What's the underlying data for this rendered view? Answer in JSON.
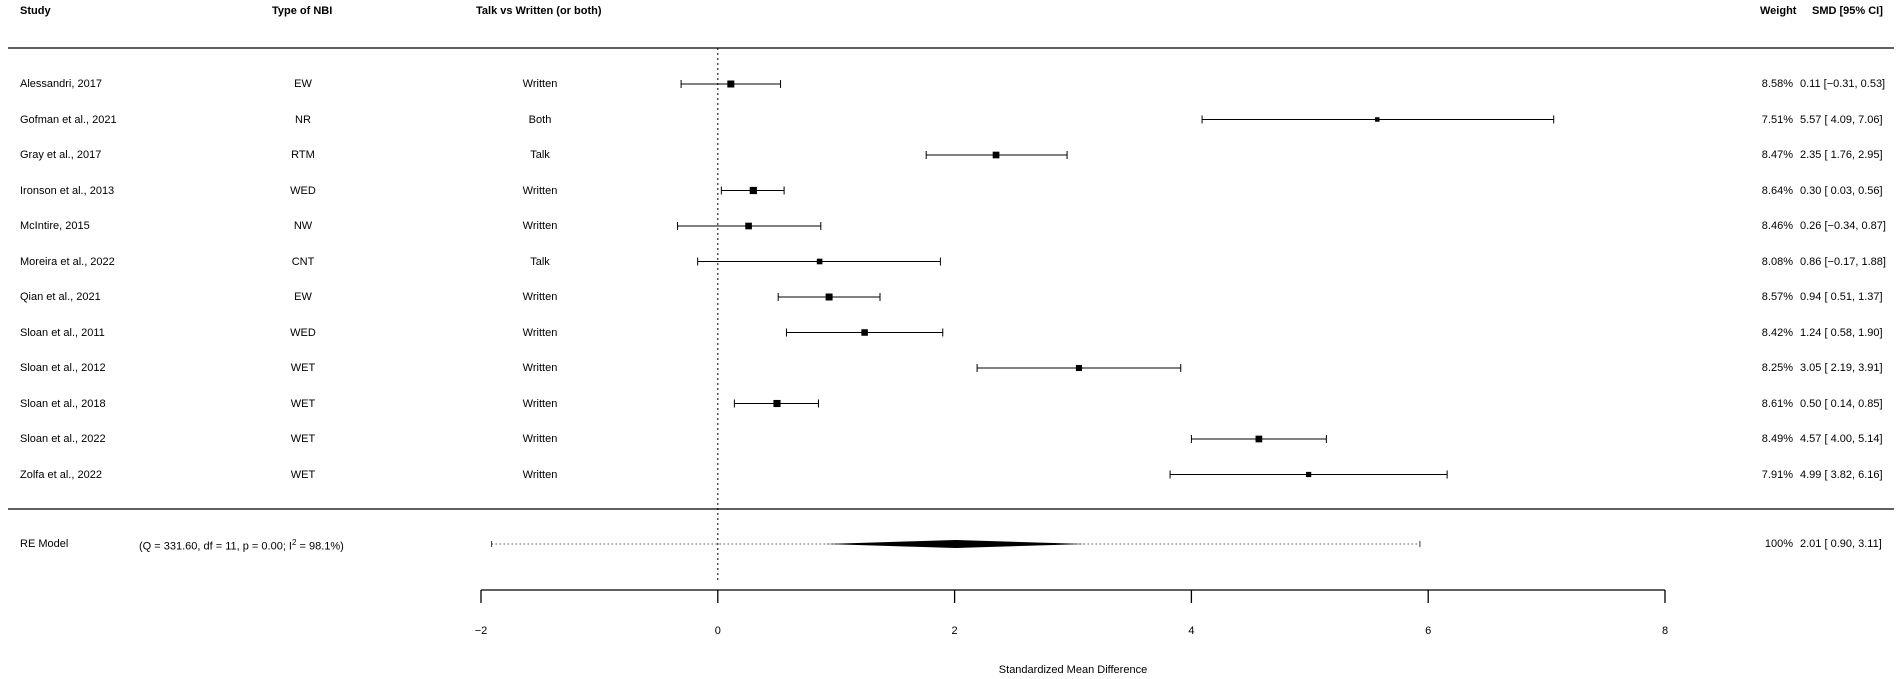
{
  "columns": {
    "study": "Study",
    "type": "Type of NBI",
    "mode": "Talk vs Written (or both)",
    "weight": "Weight",
    "smd": "SMD [95% CI]"
  },
  "chart_data": {
    "type": "forest",
    "xlabel": "Standardized Mean Difference",
    "xlim": [
      -2,
      8
    ],
    "xticks": [
      -2,
      0,
      2,
      4,
      6,
      8
    ],
    "xtick_labels": [
      "−2",
      "0",
      "2",
      "4",
      "6",
      "8"
    ],
    "reference_line": 0,
    "studies": [
      {
        "study": "Alessandri, 2017",
        "type": "EW",
        "mode": "Written",
        "smd": 0.11,
        "lo": -0.31,
        "hi": 0.53,
        "weight_pct": 8.58,
        "weight": "8.58%",
        "ci_text": "0.11 [−0.31, 0.53]"
      },
      {
        "study": "Gofman et al., 2021",
        "type": "NR",
        "mode": "Both",
        "smd": 5.57,
        "lo": 4.09,
        "hi": 7.06,
        "weight_pct": 7.51,
        "weight": "7.51%",
        "ci_text": "5.57 [ 4.09, 7.06]"
      },
      {
        "study": "Gray et al., 2017",
        "type": "RTM",
        "mode": "Talk",
        "smd": 2.35,
        "lo": 1.76,
        "hi": 2.95,
        "weight_pct": 8.47,
        "weight": "8.47%",
        "ci_text": "2.35 [ 1.76, 2.95]"
      },
      {
        "study": "Ironson et al., 2013",
        "type": "WED",
        "mode": "Written",
        "smd": 0.3,
        "lo": 0.03,
        "hi": 0.56,
        "weight_pct": 8.64,
        "weight": "8.64%",
        "ci_text": "0.30 [ 0.03, 0.56]"
      },
      {
        "study": "McIntire, 2015",
        "type": "NW",
        "mode": "Written",
        "smd": 0.26,
        "lo": -0.34,
        "hi": 0.87,
        "weight_pct": 8.46,
        "weight": "8.46%",
        "ci_text": "0.26 [−0.34, 0.87]"
      },
      {
        "study": "Moreira et al., 2022",
        "type": "CNT",
        "mode": "Talk",
        "smd": 0.86,
        "lo": -0.17,
        "hi": 1.88,
        "weight_pct": 8.08,
        "weight": "8.08%",
        "ci_text": "0.86 [−0.17, 1.88]"
      },
      {
        "study": "Qian et al., 2021",
        "type": "EW",
        "mode": "Written",
        "smd": 0.94,
        "lo": 0.51,
        "hi": 1.37,
        "weight_pct": 8.57,
        "weight": "8.57%",
        "ci_text": "0.94 [ 0.51, 1.37]"
      },
      {
        "study": "Sloan et al., 2011",
        "type": "WED",
        "mode": "Written",
        "smd": 1.24,
        "lo": 0.58,
        "hi": 1.9,
        "weight_pct": 8.42,
        "weight": "8.42%",
        "ci_text": "1.24 [ 0.58, 1.90]"
      },
      {
        "study": "Sloan et al., 2012",
        "type": "WET",
        "mode": "Written",
        "smd": 3.05,
        "lo": 2.19,
        "hi": 3.91,
        "weight_pct": 8.25,
        "weight": "8.25%",
        "ci_text": "3.05 [ 2.19, 3.91]"
      },
      {
        "study": "Sloan et al., 2018",
        "type": "WET",
        "mode": "Written",
        "smd": 0.5,
        "lo": 0.14,
        "hi": 0.85,
        "weight_pct": 8.61,
        "weight": "8.61%",
        "ci_text": "0.50 [ 0.14, 0.85]"
      },
      {
        "study": "Sloan et al., 2022",
        "type": "WET",
        "mode": "Written",
        "smd": 4.57,
        "lo": 4.0,
        "hi": 5.14,
        "weight_pct": 8.49,
        "weight": "8.49%",
        "ci_text": "4.57 [ 4.00, 5.14]"
      },
      {
        "study": "Zolfa et al., 2022",
        "type": "WET",
        "mode": "Written",
        "smd": 4.99,
        "lo": 3.82,
        "hi": 6.16,
        "weight_pct": 7.91,
        "weight": "7.91%",
        "ci_text": "4.99 [ 3.82, 6.16]"
      }
    ],
    "summary": {
      "label": "RE Model",
      "stats_prefix": "(Q = 331.60, df = 11, p = 0.00; I",
      "stats_sup": "2",
      "stats_suffix": " = 98.1%)",
      "smd": 2.01,
      "lo": 0.9,
      "hi": 3.11,
      "pi_lo": -1.91,
      "pi_hi": 5.93,
      "weight": "100%",
      "ci_text": "2.01 [ 0.90, 3.11]"
    }
  }
}
